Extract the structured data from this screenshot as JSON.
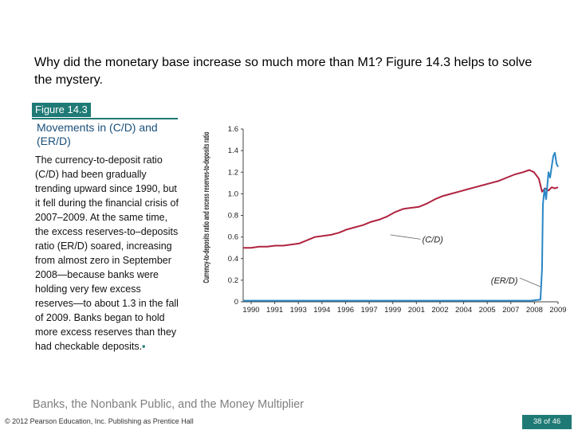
{
  "slide": {
    "heading": "Why did the monetary base increase so much more than M1? Figure 14.3 helps to solve the mystery.",
    "figure_tag": "Figure 14.3",
    "figure_title": "Movements in (C/D) and (ER/D)",
    "caption": "The currency-to-deposit ratio (C/D) had been gradually trending upward since 1990, but it fell during the financial crisis of 2007–2009. At the same time, the excess reserves-to–deposits ratio (ER/D) soared, increasing from almost zero in September 2008—because banks were holding very few excess reserves—to about 1.3 in the fall of 2009. Banks began to hold more excess reserves than they had checkable deposits.",
    "end_mark": "▪",
    "footer_title": "Banks, the Nonbank Public, and the Money Multiplier",
    "copyright": "© 2012 Pearson Education, Inc. Publishing as Prentice Hall",
    "page": "38 of 46"
  },
  "colors": {
    "accent": "#1f7a75",
    "cd_line": "#b0233f",
    "erd_line": "#2a86c4"
  },
  "chart_data": {
    "type": "line",
    "title": "Movements in (C/D) and (ER/D)",
    "ylabel": "Currency-to-deposits ratio and excess reserves-to-deposits ratio",
    "xlabel": "",
    "ylim": [
      0,
      1.6
    ],
    "xlim": [
      1990,
      2009.7
    ],
    "y_ticks": [
      "0",
      "0.2",
      "0.4",
      "0.6",
      "0.8",
      "1.0",
      "1.2",
      "1.4",
      "1.6"
    ],
    "x_ticks": [
      "1990",
      "1991",
      "1993",
      "1994",
      "1996",
      "1997",
      "1999",
      "2001",
      "2002",
      "2004",
      "2005",
      "2007",
      "2008",
      "2009"
    ],
    "annotations": [
      "(C/D)",
      "(ER/D)"
    ],
    "series": [
      {
        "name": "(C/D)",
        "x": [
          1990,
          1990.5,
          1991,
          1991.5,
          1992,
          1992.5,
          1993,
          1993.5,
          1994,
          1994.5,
          1995,
          1995.5,
          1996,
          1996.5,
          1997,
          1997.5,
          1998,
          1998.5,
          1999,
          1999.5,
          2000,
          2000.5,
          2001,
          2001.5,
          2002,
          2002.5,
          2003,
          2003.5,
          2004,
          2004.5,
          2005,
          2005.5,
          2006,
          2006.5,
          2007,
          2007.5,
          2007.9,
          2008.2,
          2008.5,
          2008.7,
          2008.9,
          2009.1,
          2009.3,
          2009.5,
          2009.7
        ],
        "values": [
          0.5,
          0.5,
          0.51,
          0.51,
          0.52,
          0.52,
          0.53,
          0.54,
          0.57,
          0.6,
          0.61,
          0.62,
          0.64,
          0.67,
          0.69,
          0.71,
          0.74,
          0.76,
          0.79,
          0.83,
          0.86,
          0.87,
          0.88,
          0.91,
          0.95,
          0.98,
          1.0,
          1.02,
          1.04,
          1.06,
          1.08,
          1.1,
          1.12,
          1.15,
          1.18,
          1.2,
          1.22,
          1.2,
          1.14,
          1.02,
          1.05,
          1.03,
          1.06,
          1.05,
          1.06
        ]
      },
      {
        "name": "(ER/D)",
        "x": [
          1990,
          1995,
          2000,
          2005,
          2008.0,
          2008.6,
          2008.7,
          2008.75,
          2008.85,
          2008.95,
          2009.1,
          2009.2,
          2009.3,
          2009.4,
          2009.5,
          2009.6,
          2009.7
        ],
        "values": [
          0.01,
          0.01,
          0.01,
          0.01,
          0.01,
          0.02,
          0.3,
          0.9,
          1.05,
          0.95,
          1.2,
          1.15,
          1.25,
          1.35,
          1.38,
          1.28,
          1.25
        ]
      }
    ]
  }
}
